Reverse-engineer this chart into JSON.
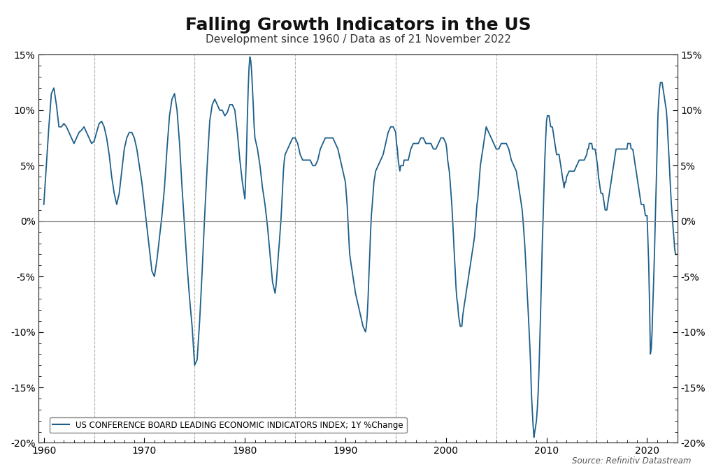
{
  "title": "Falling Growth Indicators in the US",
  "subtitle": "Development since 1960 / Data as of 21 November 2022",
  "source": "Source: Refinitiv Datastream",
  "legend_label": "US CONFERENCE BOARD LEADING ECONOMIC INDICATORS INDEX; 1Y %Change",
  "line_color": "#1d5f8a",
  "line_width": 1.3,
  "background_color": "#ffffff",
  "ylim": [
    -20,
    15
  ],
  "yticks": [
    -20,
    -15,
    -10,
    -5,
    0,
    5,
    10,
    15
  ],
  "xticks": [
    1960,
    1970,
    1980,
    1990,
    2000,
    2010,
    2020
  ],
  "vline_positions": [
    1965,
    1975,
    1985,
    1995,
    2005,
    2015
  ],
  "vline_color": "#b0b0b0",
  "vline_style": "--",
  "zero_line_color": "#888888",
  "title_fontsize": 18,
  "subtitle_fontsize": 11,
  "axis_fontsize": 10,
  "xlim_left": 1959.5,
  "xlim_right": 2023.0
}
